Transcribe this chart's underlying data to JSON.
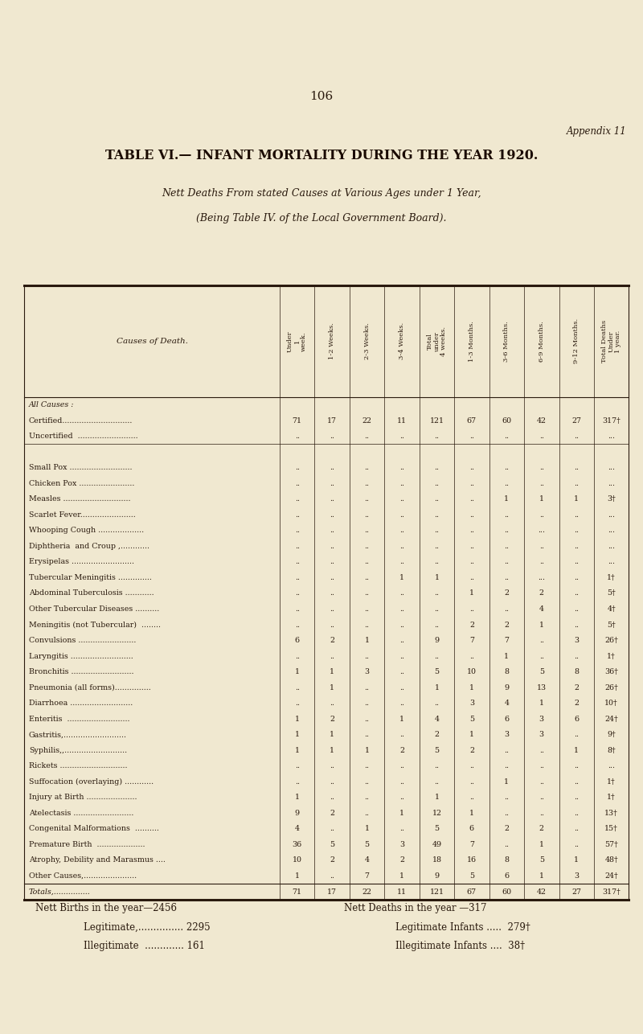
{
  "page_number": "106",
  "appendix": "Appendix 11",
  "title": "TABLE VI.— INFANT MORTALITY DURING THE YEAR 1920.",
  "subtitle1": "Nett Deaths From stated Causes at Various Ages under 1 Year,",
  "subtitle2": "(Being Table IV. of the Local Government Board).",
  "col_headers": [
    "Under\n1\nweek.",
    "1-2 Weeks.",
    "2-3 Weeks.",
    "3-4 Weeks.",
    "Total\nunder\n4 weeks.",
    "1-3 Months.",
    "3-6 Months.",
    "6-9 Months.",
    "9-12 Months.",
    "Total Deaths\nUnder\n1 year."
  ],
  "cause_col_header": "Causes of Death.",
  "rows": [
    {
      "cause": "All Causes :",
      "values": null,
      "section_header": true
    },
    {
      "cause": "Certified.............................",
      "values": [
        "71",
        "17",
        "22",
        "11",
        "121",
        "67",
        "60",
        "42",
        "27",
        "317†"
      ]
    },
    {
      "cause": "Uncertified  .........................",
      "values": [
        "..",
        "..",
        "..",
        "..",
        "..",
        "..",
        "..",
        "..",
        "..",
        "..."
      ]
    },
    {
      "cause": "",
      "values": null,
      "section_header": false
    },
    {
      "cause": "Small Pox ..........................",
      "values": [
        "..",
        "..",
        "..",
        "..",
        "..",
        "..",
        "..",
        "..",
        "..",
        "..."
      ]
    },
    {
      "cause": "Chicken Pox .......................",
      "values": [
        "..",
        "..",
        "..",
        "..",
        "..",
        "..",
        "..",
        "..",
        "..",
        "..."
      ]
    },
    {
      "cause": "Measles ............................",
      "values": [
        "..",
        "..",
        "..",
        "..",
        "..",
        "..",
        "1",
        "1",
        "1",
        "3†"
      ]
    },
    {
      "cause": "Scarlet Fever.......................",
      "values": [
        "..",
        "..",
        "..",
        "..",
        "..",
        "..",
        "..",
        "..",
        "..",
        "..."
      ]
    },
    {
      "cause": "Whooping Cough ...................",
      "values": [
        "..",
        "..",
        "..",
        "..",
        "..",
        "..",
        "..",
        "...",
        "..",
        "..."
      ]
    },
    {
      "cause": "Diphtheria  and Croup ,............",
      "values": [
        "..",
        "..",
        "..",
        "..",
        "..",
        "..",
        "..",
        "..",
        "..",
        "..."
      ]
    },
    {
      "cause": "Erysipelas ..........................",
      "values": [
        "..",
        "..",
        "..",
        "..",
        "..",
        "..",
        "..",
        "..",
        "..",
        "..."
      ]
    },
    {
      "cause": "Tubercular Meningitis ..............",
      "values": [
        "..",
        "..",
        "..",
        "1",
        "1",
        "..",
        "..",
        "...",
        "..",
        "1†"
      ]
    },
    {
      "cause": "Abdominal Tuberculosis ............",
      "values": [
        "..",
        "..",
        "..",
        "..",
        "..",
        "1",
        "2",
        "2",
        "..",
        "5†"
      ]
    },
    {
      "cause": "Other Tubercular Diseases ..........",
      "values": [
        "..",
        "..",
        "..",
        "..",
        "..",
        "..",
        "..",
        "4",
        "..",
        "4†"
      ]
    },
    {
      "cause": "Meningitis (not Tubercular)  ........",
      "values": [
        "..",
        "..",
        "..",
        "..",
        "..",
        "2",
        "2",
        "1",
        "..",
        "5†"
      ]
    },
    {
      "cause": "Convulsions ........................",
      "values": [
        "6",
        "2",
        "1",
        "..",
        "9",
        "7",
        "7",
        "..",
        "3",
        "26†"
      ]
    },
    {
      "cause": "Laryngitis ..........................",
      "values": [
        "..",
        "..",
        "..",
        "..",
        "..",
        "..",
        "1",
        "..",
        "..",
        "1†"
      ]
    },
    {
      "cause": "Bronchitis ..........................",
      "values": [
        "1",
        "1",
        "3",
        "..",
        "5",
        "10",
        "8",
        "5",
        "8",
        "36†"
      ]
    },
    {
      "cause": "Pneumonia (all forms)...............",
      "values": [
        "..",
        "1",
        "..",
        "..",
        "1",
        "1",
        "9",
        "13",
        "2",
        "26†"
      ]
    },
    {
      "cause": "Diarrhoea ..........................",
      "values": [
        "..",
        "..",
        "..",
        "..",
        "..",
        "3",
        "4",
        "1",
        "2",
        "10†"
      ]
    },
    {
      "cause": "Enteritis  ..........................",
      "values": [
        "1",
        "2",
        "..",
        "1",
        "4",
        "5",
        "6",
        "3",
        "6",
        "24†"
      ]
    },
    {
      "cause": "Gastritis,..........................",
      "values": [
        "1",
        "1",
        "..",
        "..",
        "2",
        "1",
        "3",
        "3",
        "..",
        "9†"
      ]
    },
    {
      "cause": "Syphilis,,..........................",
      "values": [
        "1",
        "1",
        "1",
        "2",
        "5",
        "2",
        "..",
        "..",
        "1",
        "8†"
      ]
    },
    {
      "cause": "Rickets ............................",
      "values": [
        "..",
        "..",
        "..",
        "..",
        "..",
        "..",
        "..",
        "..",
        "..",
        "..."
      ]
    },
    {
      "cause": "Suffocation (overlaying) ............",
      "values": [
        "..",
        "..",
        "..",
        "..",
        "..",
        "..",
        "1",
        "..",
        "..",
        "1†"
      ]
    },
    {
      "cause": "Injury at Birth .....................",
      "values": [
        "1",
        "..",
        "..",
        "..",
        "1",
        "..",
        "..",
        "..",
        "..",
        "1†"
      ]
    },
    {
      "cause": "Atelectasis .........................",
      "values": [
        "9",
        "2",
        "..",
        "1",
        "12",
        "1",
        "..",
        "..",
        "..",
        "13†"
      ]
    },
    {
      "cause": "Congenital Malformations  ..........",
      "values": [
        "4",
        "..",
        "1",
        "..",
        "5",
        "6",
        "2",
        "2",
        "..",
        "15†"
      ]
    },
    {
      "cause": "Premature Birth  ....................",
      "values": [
        "36",
        "5",
        "5",
        "3",
        "49",
        "7",
        "..",
        "1",
        "..",
        "57†"
      ]
    },
    {
      "cause": "Atrophy, Debility and Marasmus ....",
      "values": [
        "10",
        "2",
        "4",
        "2",
        "18",
        "16",
        "8",
        "5",
        "1",
        "48†"
      ]
    },
    {
      "cause": "Other Causes,......................",
      "values": [
        "1",
        "..",
        "7",
        "1",
        "9",
        "5",
        "6",
        "1",
        "3",
        "24†"
      ]
    }
  ],
  "totals_row": {
    "cause": "Totals,...............",
    "values": [
      "71",
      "17",
      "22",
      "11",
      "121",
      "67",
      "60",
      "42",
      "27",
      "317†"
    ]
  },
  "footer_left1": "Nett Births in the year—2456",
  "footer_left2": "Legitimate,............... 2295",
  "footer_left3": "Illegitimate  ............. 161",
  "footer_right1": "Nett Deaths in the year —317",
  "footer_right2": "Legitimate Infants .....  279†",
  "footer_right3": "Illegitimate Infants ....  38†",
  "bg_color": "#f0e8d0",
  "text_color": "#2a1a0e",
  "title_color": "#1a0a00",
  "line_color": "#2a1a0e"
}
